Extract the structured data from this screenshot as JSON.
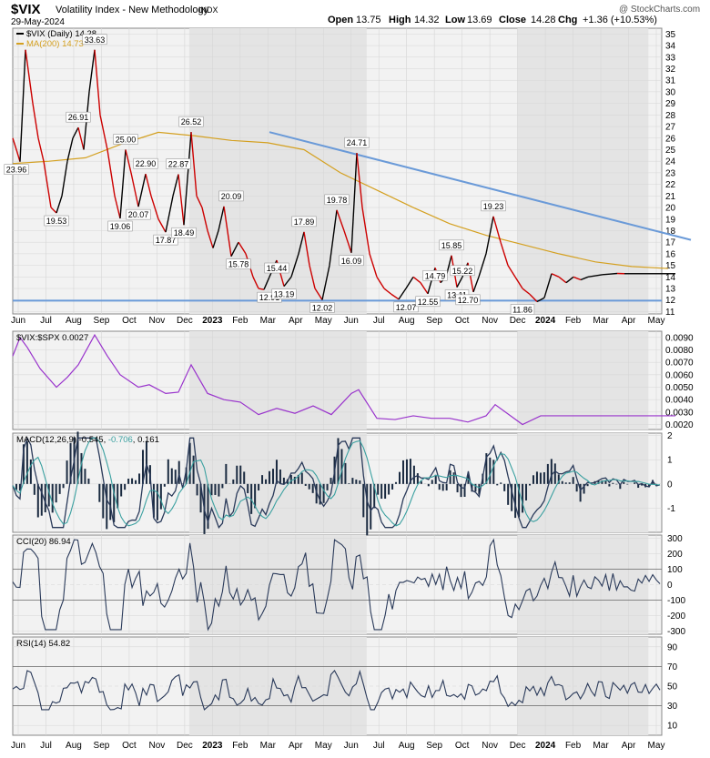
{
  "header": {
    "symbol": "$VIX",
    "name": "Volatility Index - New Methodology",
    "exchange": "INDX",
    "date": "29-May-2024",
    "watermark": "@ StockCharts.com",
    "open_label": "Open",
    "open": "13.75",
    "high_label": "High",
    "high": "14.32",
    "low_label": "Low",
    "low": "13.69",
    "close_label": "Close",
    "close": "14.28",
    "chg_label": "Chg",
    "chg": "+1.36 (+10.53%)"
  },
  "colors": {
    "price_up": "#000000",
    "price_down": "#cc0000",
    "ma": "#d4a020",
    "trendline": "#6a9ad8",
    "ratio": "#9933cc",
    "macd": "#2a3a5a",
    "signal": "#3aa0a0",
    "osc": "#2a3a5a",
    "osc_fill": "#8a9ab8",
    "shade": "#e4e4e4",
    "bg": "#f2f2f2",
    "grid": "#d6d6d6"
  },
  "chart_data": [
    {
      "type": "line",
      "panel": "price",
      "legend": [
        "$VIX (Daily) 14.28",
        "MA(200) 14.73"
      ],
      "x_ticks": [
        "Jun",
        "Jul",
        "Aug",
        "Sep",
        "Oct",
        "Nov",
        "Dec",
        "2023",
        "Feb",
        "Mar",
        "Apr",
        "May",
        "Jun",
        "Jul",
        "Aug",
        "Sep",
        "Oct",
        "Nov",
        "Dec",
        "2024",
        "Feb",
        "Mar",
        "Apr",
        "May"
      ],
      "y_ticks": [
        11,
        12,
        13,
        14,
        15,
        16,
        17,
        18,
        19,
        20,
        21,
        22,
        23,
        24,
        25,
        26,
        27,
        28,
        29,
        30,
        31,
        32,
        33,
        34,
        35
      ],
      "ylim": [
        10.8,
        35.5
      ],
      "series": [
        {
          "name": "$VIX (Daily)",
          "x": [
            0,
            4,
            8,
            14,
            22,
            28,
            34,
            38,
            42,
            48,
            54,
            60,
            66,
            72,
            78,
            84,
            90,
            96,
            104,
            112,
            118,
            124,
            130,
            138,
            146,
            152,
            160,
            168,
            176,
            182,
            188,
            196,
            202,
            208,
            214,
            220,
            226,
            232,
            240,
            248,
            256,
            264,
            270,
            276,
            282,
            290,
            298,
            306,
            314,
            320,
            326,
            332,
            340,
            348,
            356,
            364,
            372,
            378,
            384,
            392,
            400,
            408,
            416,
            424,
            432,
            440,
            448,
            456,
            464,
            470,
            476,
            482,
            488,
            494,
            500,
            506,
            512,
            520,
            528,
            536,
            544,
            552,
            560,
            568,
            576,
            584,
            592,
            600,
            608,
            616,
            624,
            632,
            640,
            648,
            656,
            664,
            672,
            680,
            688,
            696,
            704,
            710,
            716,
            722,
            728
          ],
          "values": [
            26,
            25,
            23.96,
            33.63,
            29,
            26,
            24,
            22,
            20,
            19.53,
            21,
            24,
            26,
            26.91,
            25,
            30,
            33.63,
            28,
            25,
            21,
            19.06,
            25,
            23,
            20.07,
            22.9,
            21,
            19,
            17.87,
            21,
            22.87,
            18.49,
            26.52,
            21,
            20,
            18,
            16.5,
            18,
            20.09,
            15.78,
            17,
            16,
            14,
            13,
            12.91,
            14,
            15.44,
            13.19,
            14,
            16,
            17.89,
            15,
            13,
            12.02,
            15,
            19.78,
            18,
            16.09,
            24.71,
            20,
            16,
            14,
            13,
            12.5,
            12.07,
            13,
            14,
            13.5,
            12.55,
            14.79,
            13.5,
            14,
            15.85,
            13.11,
            14,
            15.22,
            12.7,
            14,
            16,
            19.23,
            17,
            15,
            14,
            13,
            12.5,
            11.86,
            12.2,
            14.28,
            14,
            13.5,
            14,
            13.75,
            14,
            14.1,
            14.2,
            14.25,
            14.3,
            14.28,
            14.28,
            14.28,
            14.28,
            14.28,
            14.28,
            14.28,
            14.28,
            14.28
          ]
        },
        {
          "name": "MA(200)",
          "x": [
            0,
            40,
            80,
            120,
            160,
            200,
            240,
            280,
            320,
            360,
            400,
            440,
            480,
            520,
            560,
            600,
            640,
            680,
            720
          ],
          "values": [
            23.8,
            24,
            24.3,
            25.5,
            26.5,
            26.2,
            25.8,
            25.6,
            25,
            23,
            21.5,
            20,
            18.6,
            17.6,
            16.8,
            16,
            15.3,
            14.9,
            14.73
          ]
        }
      ],
      "labels": [
        [
          "23.96",
          4,
          23.96
        ],
        [
          "19.53",
          48,
          19.53
        ],
        [
          "26.91",
          72,
          26.91
        ],
        [
          "33.63",
          90,
          33.63
        ],
        [
          "19.06",
          118,
          19.06
        ],
        [
          "25.00",
          124,
          25
        ],
        [
          "20.07",
          138,
          20.07
        ],
        [
          "22.90",
          146,
          22.9
        ],
        [
          "17.87",
          168,
          17.87
        ],
        [
          "22.87",
          182,
          22.87
        ],
        [
          "18.49",
          188,
          18.49
        ],
        [
          "26.52",
          196,
          26.52
        ],
        [
          "20.09",
          240,
          20.09
        ],
        [
          "15.78",
          248,
          15.78
        ],
        [
          "15.44",
          290,
          15.44
        ],
        [
          "12.91",
          282,
          12.91
        ],
        [
          "13.19",
          298,
          13.19
        ],
        [
          "17.89",
          320,
          17.89
        ],
        [
          "12.02",
          340,
          12.02
        ],
        [
          "19.78",
          356,
          19.78
        ],
        [
          "16.09",
          372,
          16.09
        ],
        [
          "24.71",
          378,
          24.71
        ],
        [
          "12.07",
          432,
          12.07
        ],
        [
          "12.55",
          456,
          12.55
        ],
        [
          "14.79",
          464,
          14.79
        ],
        [
          "15.85",
          482,
          15.85
        ],
        [
          "13.11",
          488,
          13.11
        ],
        [
          "15.22",
          494,
          15.22
        ],
        [
          "12.70",
          500,
          12.7
        ],
        [
          "19.23",
          528,
          19.23
        ],
        [
          "11.86",
          560,
          11.86
        ]
      ]
    },
    {
      "type": "line",
      "panel": "ratio",
      "legend": [
        "$VIX:$SPX 0.0027"
      ],
      "y_ticks": [
        "0.0020",
        "0.0030",
        "0.0040",
        "0.0050",
        "0.0060",
        "0.0070",
        "0.0080",
        "0.0090"
      ],
      "ylim": [
        0.0016,
        0.0095
      ],
      "x": [
        0,
        8,
        16,
        30,
        48,
        60,
        72,
        90,
        104,
        118,
        138,
        150,
        168,
        182,
        196,
        214,
        232,
        250,
        270,
        290,
        310,
        330,
        350,
        372,
        380,
        400,
        420,
        440,
        460,
        480,
        500,
        520,
        530,
        560,
        580,
        700,
        728
      ],
      "values": [
        0.0075,
        0.009,
        0.0082,
        0.0065,
        0.005,
        0.0058,
        0.0068,
        0.0092,
        0.0075,
        0.006,
        0.005,
        0.0052,
        0.0045,
        0.0046,
        0.0068,
        0.0045,
        0.004,
        0.0038,
        0.0028,
        0.0033,
        0.0029,
        0.0035,
        0.0028,
        0.0045,
        0.0048,
        0.0025,
        0.0024,
        0.0027,
        0.0025,
        0.0025,
        0.0022,
        0.0027,
        0.0036,
        0.002,
        0.0027,
        0.0027,
        0.0027
      ]
    },
    {
      "type": "line",
      "panel": "macd",
      "legend": [
        "MACD(12,26,9)",
        "-0.545",
        "-0.706",
        "0.161"
      ],
      "y_ticks": [
        "2",
        "1",
        "0",
        "-1"
      ],
      "ylim": [
        -2,
        2.1
      ]
    },
    {
      "type": "line",
      "panel": "cci",
      "legend": [
        "CCI(20) 86.94"
      ],
      "y_ticks": [
        "300",
        "200",
        "100",
        "0",
        "-100",
        "-200",
        "-300"
      ],
      "ylim": [
        -320,
        320
      ]
    },
    {
      "type": "line",
      "panel": "rsi",
      "legend": [
        "RSI(14) 54.82"
      ],
      "y_ticks": [
        "90",
        "70",
        "50",
        "30",
        "10"
      ],
      "ylim": [
        0,
        100
      ]
    }
  ]
}
